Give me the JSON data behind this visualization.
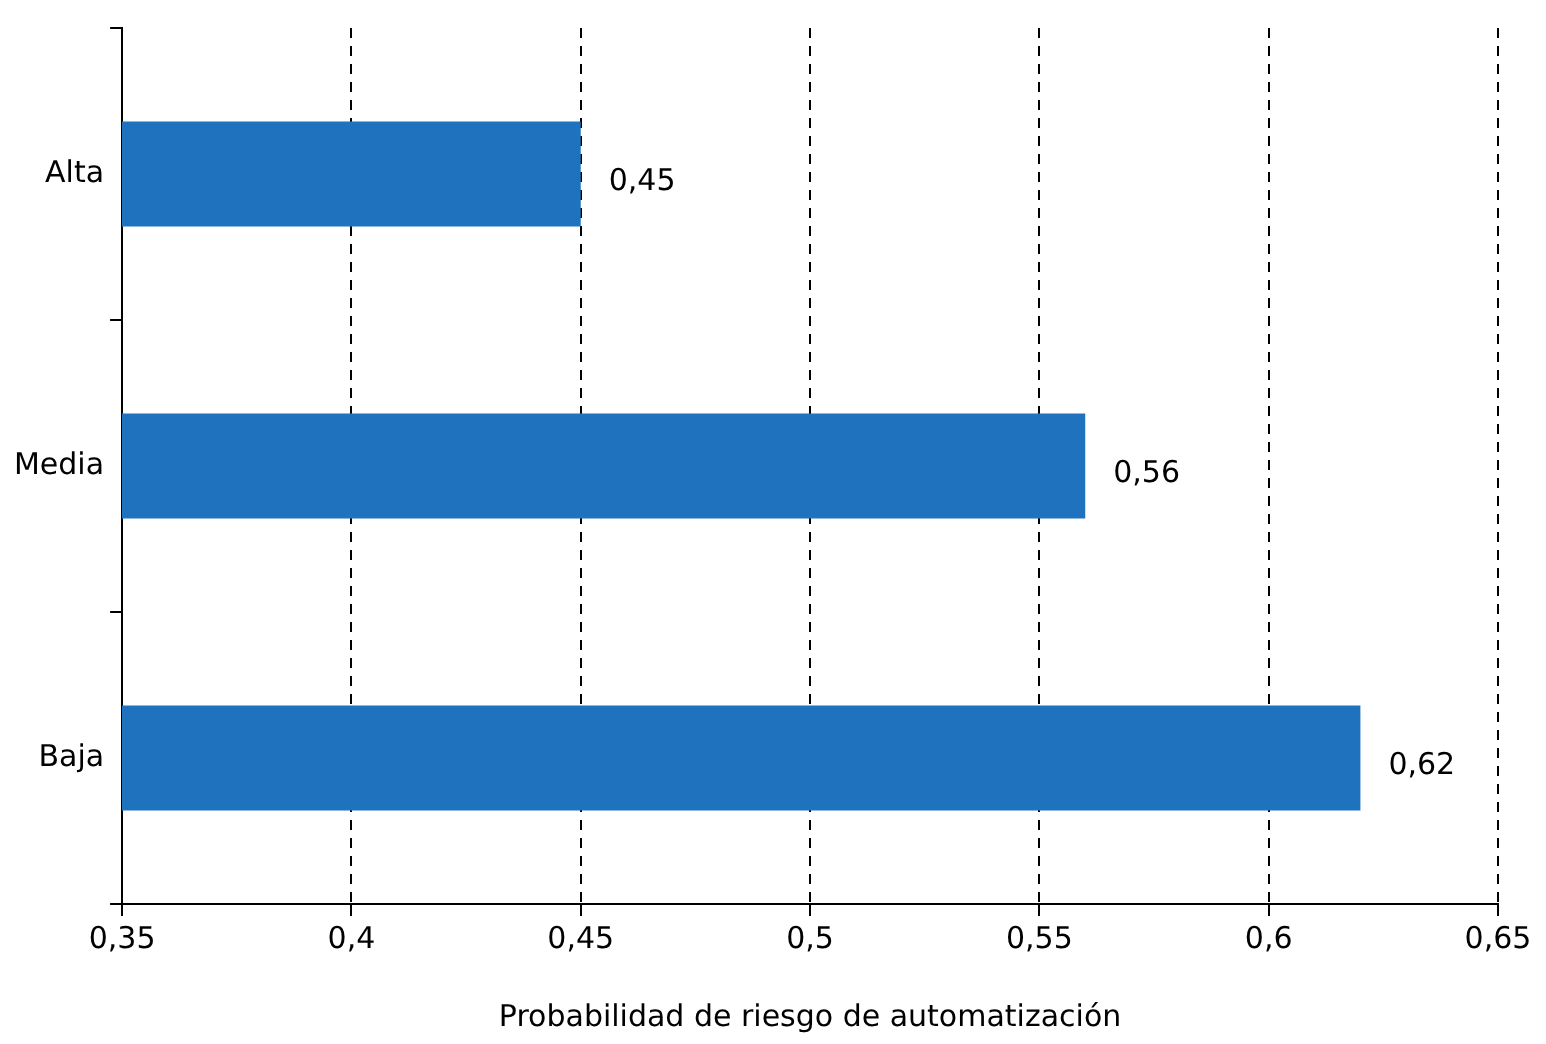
{
  "chart_data": {
    "type": "bar",
    "orientation": "horizontal",
    "xlabel": "Probabilidad de riesgo de automatización",
    "categories": [
      "Alta",
      "Media",
      "Baja"
    ],
    "values": [
      0.45,
      0.56,
      0.62
    ],
    "value_labels": [
      "0,45",
      "0,56",
      "0,62"
    ],
    "color": "#1f73be",
    "xlim": [
      0.35,
      0.65
    ],
    "xticks": [
      {
        "value": 0.35,
        "label": "0,35"
      },
      {
        "value": 0.4,
        "label": "0,4"
      },
      {
        "value": 0.45,
        "label": "0,45"
      },
      {
        "value": 0.5,
        "label": "0,5"
      },
      {
        "value": 0.55,
        "label": "0,55"
      },
      {
        "value": 0.6,
        "label": "0,6"
      },
      {
        "value": 0.65,
        "label": "0,65"
      }
    ],
    "grid": "x",
    "legend": false
  }
}
